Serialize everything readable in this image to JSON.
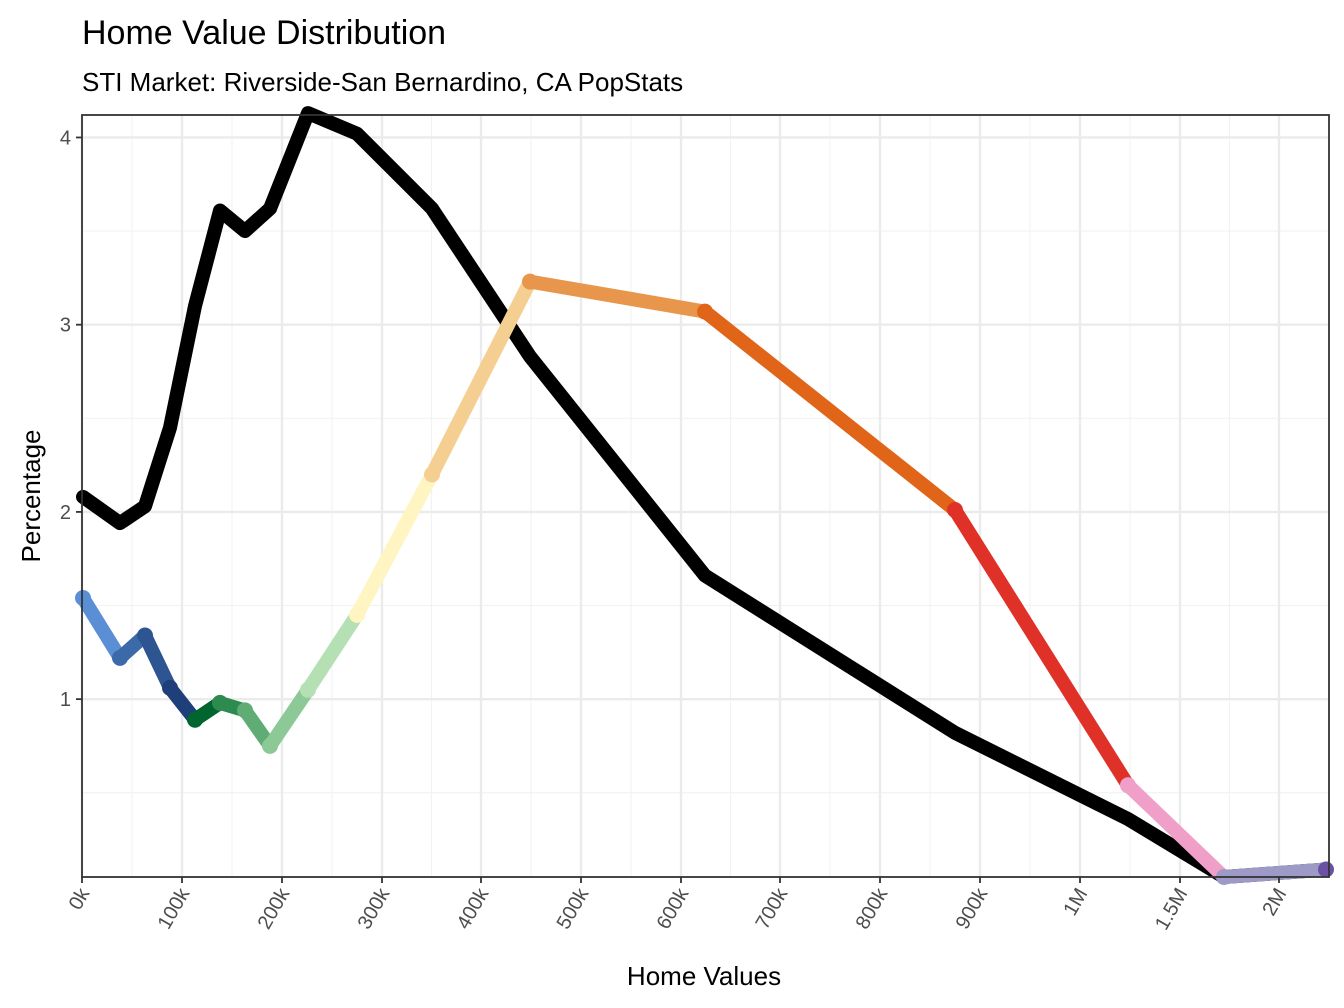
{
  "chart_data": {
    "type": "line",
    "title": "Home Value Distribution",
    "subtitle": "STI Market: Riverside-San Bernardino, CA PopStats",
    "xlabel": "Home Values",
    "ylabel": "Percentage",
    "x_tick_labels": [
      "0k",
      "100k",
      "200k",
      "300k",
      "400k",
      "500k",
      "600k",
      "700k",
      "800k",
      "900k",
      "1M",
      "1.5M",
      "2M"
    ],
    "y_tick_labels": [
      "1",
      "2",
      "3",
      "4"
    ],
    "ylim": [
      0.05,
      4.12
    ],
    "grid": true,
    "x": [
      "10k",
      "35k",
      "62.5k",
      "87.5k",
      "112.5k",
      "137.5k",
      "162.5k",
      "187.5k",
      "225k",
      "275k",
      "350k",
      "450k",
      "625k",
      "875k",
      "1.25M",
      "1.75M",
      "2M+"
    ],
    "series": [
      {
        "values": [
          2.08,
          1.94,
          2.03,
          2.45,
          3.1,
          3.61,
          3.5,
          3.62,
          4.13,
          4.02,
          3.62,
          2.83,
          1.66,
          0.82,
          0.36,
          0.05,
          0.09
        ],
        "color": "#000000"
      },
      {
        "values": [
          1.54,
          1.22,
          1.34,
          1.06,
          0.89,
          0.98,
          0.94,
          0.75,
          1.05,
          1.45,
          2.2,
          3.23,
          3.07,
          2.01,
          0.54,
          0.05,
          0.09
        ],
        "segment_colors": [
          "#5a8fd6",
          "#3c6aa8",
          "#2c5591",
          "#1e3f7a",
          "#00652e",
          "#2e8b50",
          "#5fad74",
          "#8dc996",
          "#b5e0b4",
          "#fff5c2",
          "#f5cf91",
          "#e8964b",
          "#e06518",
          "#e03128",
          "#f0a0c8",
          "#9e9ac8",
          "#6a51a3"
        ]
      }
    ]
  }
}
